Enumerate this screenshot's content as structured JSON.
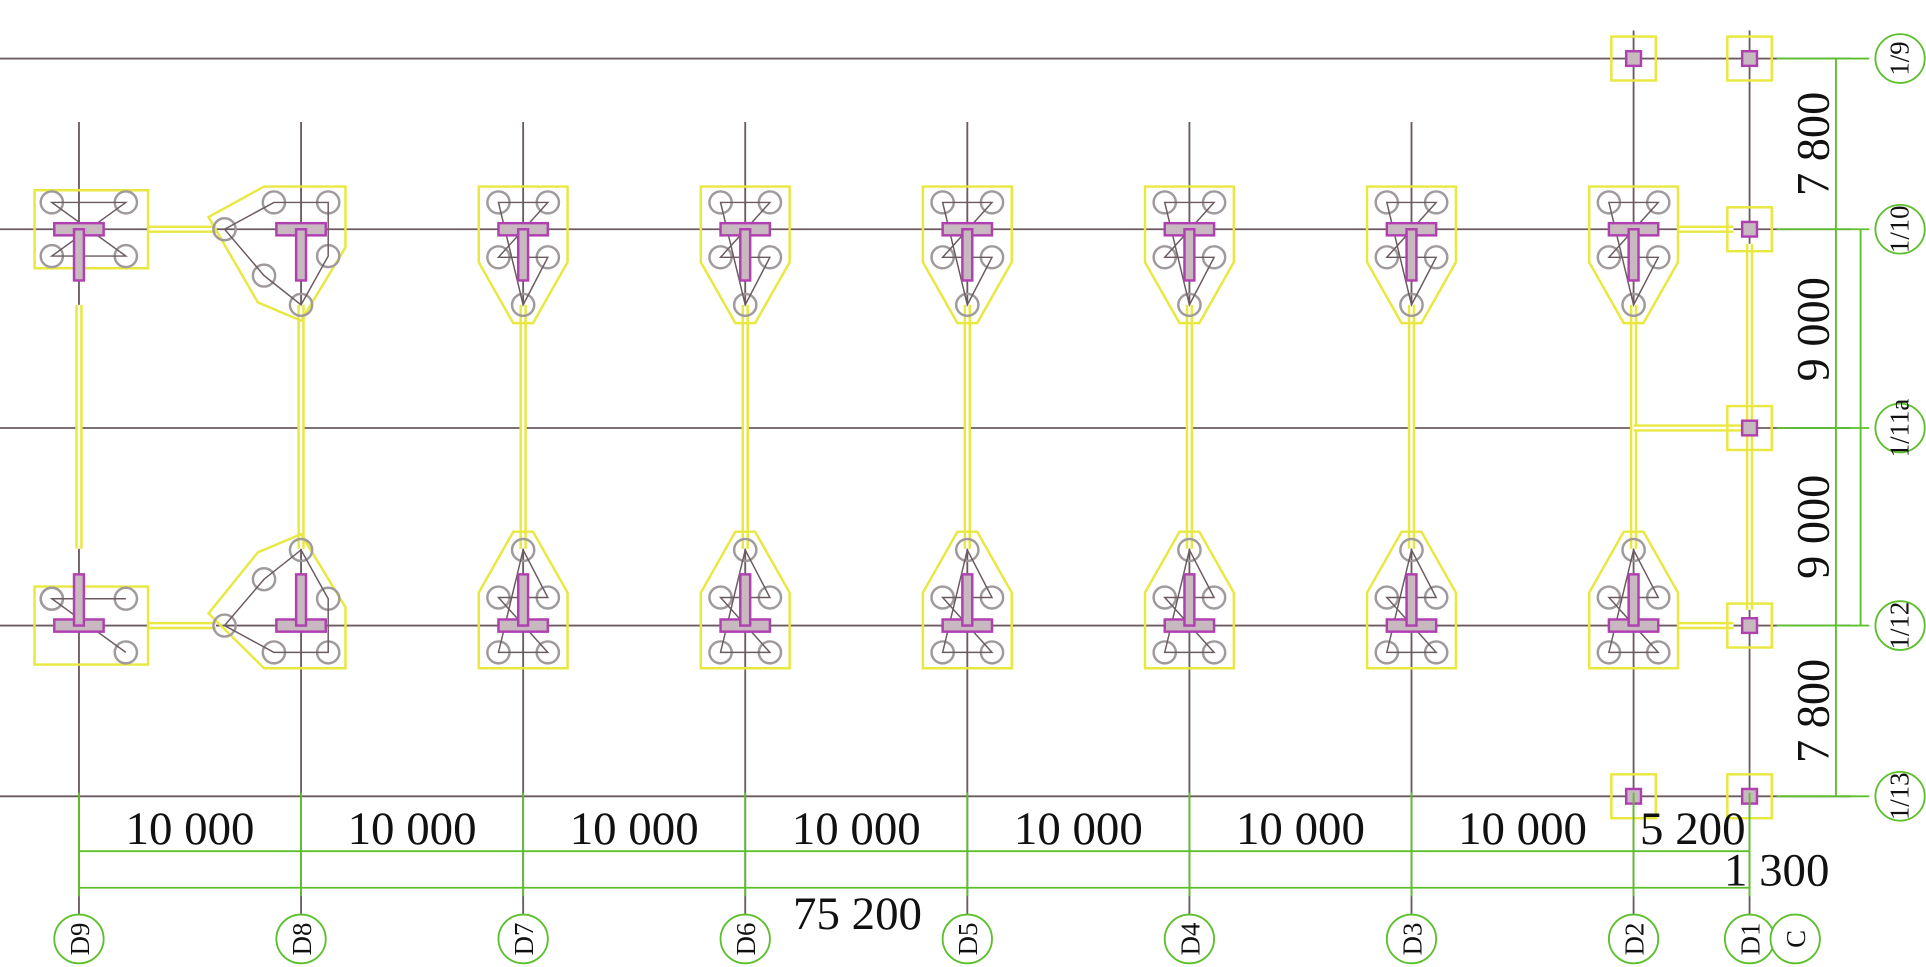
{
  "column_axes": [
    "D9",
    "D8",
    "D7",
    "D6",
    "D5",
    "D4",
    "D3",
    "D2",
    "D1",
    "C"
  ],
  "row_axes": [
    "1/9",
    "1/10",
    "1/11a",
    "1/12",
    "1/13"
  ],
  "x_dimensions": [
    "10 000",
    "10 000",
    "10 000",
    "10 000",
    "10 000",
    "10 000",
    "10 000",
    "5 200"
  ],
  "x_total": "75 200",
  "x_offset": "1 300",
  "y_dimensions": [
    "7 800",
    "9 000",
    "9 000",
    "7 800"
  ]
}
